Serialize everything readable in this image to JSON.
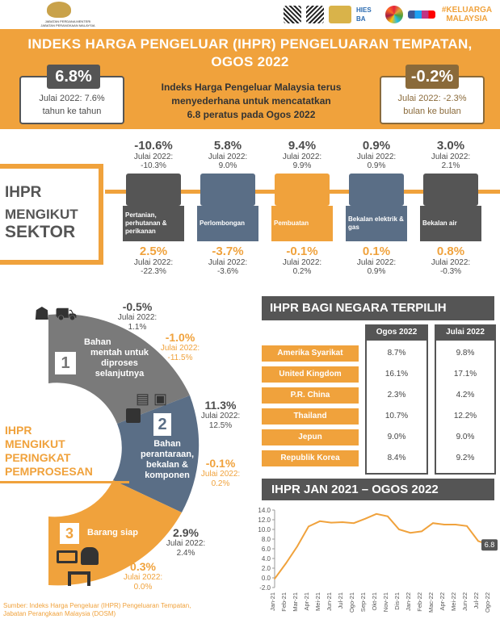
{
  "branding": {
    "dept_name": "JABATAN PERDANA MENTERI\nJABATAN PERANGKAAN MALAYSIA",
    "logo_hies": "HIES BA",
    "logo_keluarga": "#KELUARGA MALAYSIA"
  },
  "header": {
    "title_line1": "INDEKS HARGA PENGELUAR (IHPR) PENGELUARAN TEMPATAN,",
    "title_line2": "OGOS 2022",
    "yoy_value": "6.8%",
    "yoy_prev": "Julai 2022: 7.6%",
    "yoy_label": "tahun ke tahun",
    "summary_l1": "Indeks Harga Pengeluar Malaysia terus",
    "summary_l2": "menyederhana untuk mencatatkan",
    "summary_l3": "6.8 peratus pada Ogos 2022",
    "mom_value": "-0.2%",
    "mom_prev": "Julai 2022: -2.3%",
    "mom_label": "bulan ke bulan"
  },
  "sector_section": {
    "title_l1": "IHPR",
    "title_l2": "MENGIKUT",
    "title_l3": "SEKTOR",
    "sectors": [
      {
        "top": "-10.6%",
        "top_prev_l1": "Julai 2022:",
        "top_prev_l2": "-10.3%",
        "label": "Pertanian, perhutanan & perikanan",
        "bottom": "2.5%",
        "bottom_prev_l1": "Julai 2022:",
        "bottom_prev_l2": "-22.3%",
        "color": "#555555",
        "icon": "palm-tree-icon"
      },
      {
        "top": "5.8%",
        "top_prev_l1": "Julai 2022:",
        "top_prev_l2": "9.0%",
        "label": "Perlombongan",
        "bottom": "-3.7%",
        "bottom_prev_l1": "Julai 2022:",
        "bottom_prev_l2": "-3.6%",
        "color": "#5a6e86",
        "icon": "oil-rig-icon"
      },
      {
        "top": "9.4%",
        "top_prev_l1": "Julai 2022:",
        "top_prev_l2": "9.9%",
        "label": "Pembuatan",
        "bottom": "-0.1%",
        "bottom_prev_l1": "Julai 2022:",
        "bottom_prev_l2": "0.2%",
        "color": "#f0a23c",
        "icon": "factory-icon"
      },
      {
        "top": "0.9%",
        "top_prev_l1": "Julai 2022:",
        "top_prev_l2": "0.9%",
        "label": "Bekalan elektrik & gas",
        "bottom": "0.1%",
        "bottom_prev_l1": "Julai 2022:",
        "bottom_prev_l2": "0.9%",
        "color": "#5a6e86",
        "icon": "power-tower-icon"
      },
      {
        "top": "3.0%",
        "top_prev_l1": "Julai 2022:",
        "top_prev_l2": "2.1%",
        "label": "Bekalan air",
        "bottom": "0.8%",
        "bottom_prev_l1": "Julai 2022:",
        "bottom_prev_l2": "-0.3%",
        "color": "#555555",
        "icon": "water-tap-icon"
      }
    ]
  },
  "process_section": {
    "title_l1": "IHPR",
    "title_l2": "MENGIKUT",
    "title_l3": "PERINGKAT",
    "title_l4": "PEMPROSESAN",
    "stage1": {
      "num": "1",
      "l1": "Bahan",
      "l2": "mentah untuk",
      "l3": "diproses",
      "l4": "selanjutnya",
      "a_val": "-0.5%",
      "a_prev1": "Julai 2022:",
      "a_prev2": "1.1%",
      "b_val": "-1.0%",
      "b_prev1": "Julai 2022:",
      "b_prev2": "-11.5%"
    },
    "stage2": {
      "num": "2",
      "l1": "Bahan",
      "l2": "perantaraan,",
      "l3": "bekalan &",
      "l4": "komponen",
      "a_val": "11.3%",
      "a_prev1": "Julai 2022:",
      "a_prev2": "12.5%",
      "b_val": "-0.1%",
      "b_prev1": "Julai 2022:",
      "b_prev2": "0.2%"
    },
    "stage3": {
      "num": "3",
      "label": "Barang siap",
      "a_val": "2.9%",
      "a_prev1": "Julai 2022:",
      "a_prev2": "2.4%",
      "b_val": "0.3%",
      "b_prev1": "Julai 2022:",
      "b_prev2": "0.0%"
    }
  },
  "countries": {
    "title": "IHPR BAGI NEGARA TERPILIH",
    "col1": "Ogos 2022",
    "col2": "Julai 2022",
    "rows": [
      {
        "name": "Amerika Syarikat",
        "aug": "8.7%",
        "jul": "9.8%"
      },
      {
        "name": "United Kingdom",
        "aug": "16.1%",
        "jul": "17.1%"
      },
      {
        "name": "P.R. China",
        "aug": "2.3%",
        "jul": "4.2%"
      },
      {
        "name": "Thailand",
        "aug": "10.7%",
        "jul": "12.2%"
      },
      {
        "name": "Jepun",
        "aug": "9.0%",
        "jul": "9.0%"
      },
      {
        "name": "Republik Korea",
        "aug": "8.4%",
        "jul": "9.2%"
      }
    ]
  },
  "trend": {
    "title": "IHPR JAN 2021 – OGOS 2022"
  },
  "chart_data": {
    "type": "line",
    "x": [
      "Jan-21",
      "Feb-21",
      "Mar-21",
      "Apr-21",
      "May-21",
      "Jun-21",
      "Jul-21",
      "Aug-21",
      "Sep-21",
      "Oct-21",
      "Nov-21",
      "Dec-21",
      "Jan-22",
      "Feb-22",
      "Mar-22",
      "Apr-22",
      "May-22",
      "Jun-22",
      "Jul-22",
      "Aug-22"
    ],
    "x_labels": [
      "Jan-21",
      "Feb-21",
      "Mar-21",
      "Apr-21",
      "Mei-21",
      "Jun-21",
      "Jul-21",
      "Ogo-21",
      "Sep-21",
      "Okt-21",
      "Nov-21",
      "Dis-21",
      "Jan-22",
      "Feb-22",
      "Mac-22",
      "Apr-22",
      "Mei-22",
      "Jun-22",
      "Jul-22",
      "Ogo-22"
    ],
    "values": [
      -0.2,
      3.0,
      6.5,
      10.6,
      11.7,
      11.4,
      11.5,
      11.3,
      12.2,
      13.2,
      12.7,
      10.0,
      9.3,
      9.6,
      11.3,
      11.0,
      11.0,
      10.7,
      7.6,
      6.8
    ],
    "ylim": [
      -2.0,
      14.0
    ],
    "yticks": [
      "14.0",
      "12.0",
      "10.0",
      "8.0",
      "6.0",
      "4.0",
      "2.0",
      "0.0",
      "-2.0"
    ],
    "last_label": "6.8",
    "line_color": "#f0a23c"
  },
  "footer": {
    "source_l1": "Sumber: Indeks Harga Pengeluar (IHPR) Pengeluaran Tempatan,",
    "source_l2": "Jabatan Perangkaan Malaysia (DOSM)"
  }
}
